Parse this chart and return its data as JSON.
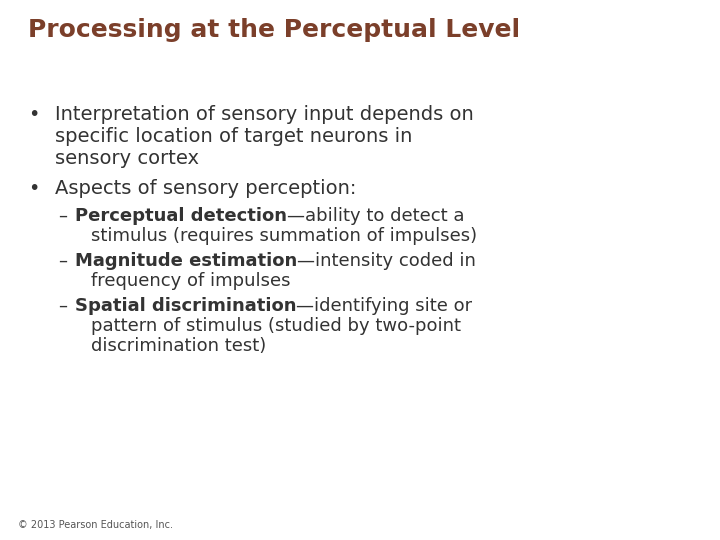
{
  "title": "Processing at the Perceptual Level",
  "title_color": "#7B3F2A",
  "title_fontsize": 18,
  "background_color": "#FFFFFF",
  "footer": "© 2013 Pearson Education, Inc.",
  "footer_fontsize": 7,
  "footer_color": "#555555",
  "bullet_color": "#333333",
  "bullet_fontsize": 14,
  "sub_fontsize": 13,
  "bullet1_lines": [
    "Interpretation of sensory input depends on",
    "specific location of target neurons in",
    "sensory cortex"
  ],
  "bullet2_line": "Aspects of sensory perception:",
  "sub_bullets": [
    {
      "bold_part": "Perceptual detection",
      "normal_lines": [
        "—ability to detect a",
        "stimulus (requires summation of impulses)"
      ]
    },
    {
      "bold_part": "Magnitude estimation",
      "normal_lines": [
        "—intensity coded in",
        "frequency of impulses"
      ]
    },
    {
      "bold_part": "Spatial discrimination",
      "normal_lines": [
        "—identifying site or",
        "pattern of stimulus (studied by two-point",
        "discrimination test)"
      ]
    }
  ]
}
